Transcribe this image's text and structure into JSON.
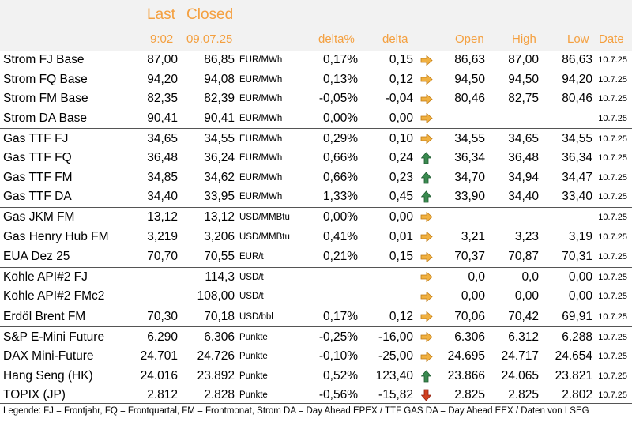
{
  "header": {
    "last": "Last",
    "closed": "Closed",
    "last_time": "9:02",
    "closed_date": "09.07.25",
    "delta_pct": "delta%",
    "delta": "delta",
    "open": "Open",
    "high": "High",
    "low": "Low",
    "date": "Date"
  },
  "colors": {
    "header_text": "#f4a040",
    "header_bg": "#f2f2f2",
    "arrow_right": "#f0b040",
    "arrow_up": "#3a8a50",
    "arrow_down": "#d04020"
  },
  "rows": [
    {
      "name": "Strom FJ Base",
      "last": "87,00",
      "closed": "86,85",
      "unit": "EUR/MWh",
      "dpct": "0,17%",
      "delta": "0,15",
      "arrow": "right",
      "open": "86,63",
      "high": "87,00",
      "low": "86,63",
      "date": "10.7.25"
    },
    {
      "name": "Strom FQ Base",
      "last": "94,20",
      "closed": "94,08",
      "unit": "EUR/MWh",
      "dpct": "0,13%",
      "delta": "0,12",
      "arrow": "right",
      "open": "94,50",
      "high": "94,50",
      "low": "94,20",
      "date": "10.7.25"
    },
    {
      "name": "Strom FM Base",
      "last": "82,35",
      "closed": "82,39",
      "unit": "EUR/MWh",
      "dpct": "-0,05%",
      "delta": "-0,04",
      "arrow": "right",
      "open": "80,46",
      "high": "82,75",
      "low": "80,46",
      "date": "10.7.25"
    },
    {
      "name": "Strom DA Base",
      "last": "90,41",
      "closed": "90,41",
      "unit": "EUR/MWh",
      "dpct": "0,00%",
      "delta": "0,00",
      "arrow": "right",
      "open": "",
      "high": "",
      "low": "",
      "date": "10.7.25"
    },
    {
      "name": "Gas TTF FJ",
      "last": "34,65",
      "closed": "34,55",
      "unit": "EUR/MWh",
      "dpct": "0,29%",
      "delta": "0,10",
      "arrow": "right",
      "open": "34,55",
      "high": "34,65",
      "low": "34,55",
      "date": "10.7.25",
      "sep": true
    },
    {
      "name": "Gas TTF FQ",
      "last": "36,48",
      "closed": "36,24",
      "unit": "EUR/MWh",
      "dpct": "0,66%",
      "delta": "0,24",
      "arrow": "up",
      "open": "36,34",
      "high": "36,48",
      "low": "36,34",
      "date": "10.7.25"
    },
    {
      "name": "Gas TTF FM",
      "last": "34,85",
      "closed": "34,62",
      "unit": "EUR/MWh",
      "dpct": "0,66%",
      "delta": "0,23",
      "arrow": "up",
      "open": "34,70",
      "high": "34,94",
      "low": "34,47",
      "date": "10.7.25"
    },
    {
      "name": "Gas TTF DA",
      "last": "34,40",
      "closed": "33,95",
      "unit": "EUR/MWh",
      "dpct": "1,33%",
      "delta": "0,45",
      "arrow": "up",
      "open": "33,90",
      "high": "34,40",
      "low": "33,40",
      "date": "10.7.25"
    },
    {
      "name": "Gas JKM FM",
      "last": "13,12",
      "closed": "13,12",
      "unit": "USD/MMBtu",
      "dpct": "0,00%",
      "delta": "0,00",
      "arrow": "right",
      "open": "",
      "high": "",
      "low": "",
      "date": "10.7.25",
      "sep": true
    },
    {
      "name": "Gas Henry Hub FM",
      "last": "3,219",
      "closed": "3,206",
      "unit": "USD/MMBtu",
      "dpct": "0,41%",
      "delta": "0,01",
      "arrow": "right",
      "open": "3,21",
      "high": "3,23",
      "low": "3,19",
      "date": "10.7.25"
    },
    {
      "name": "EUA Dez 25",
      "last": "70,70",
      "closed": "70,55",
      "unit": "EUR/t",
      "dpct": "0,21%",
      "delta": "0,15",
      "arrow": "right",
      "open": "70,37",
      "high": "70,87",
      "low": "70,31",
      "date": "10.7.25",
      "sep": true
    },
    {
      "name": "Kohle API#2 FJ",
      "last": "",
      "closed": "114,3",
      "unit": "USD/t",
      "dpct": "",
      "delta": "",
      "arrow": "right",
      "open": "0,0",
      "high": "0,0",
      "low": "0,00",
      "date": "10.7.25",
      "sep": true
    },
    {
      "name": "Kohle API#2 FMc2",
      "last": "",
      "closed": "108,00",
      "unit": "USD/t",
      "dpct": "",
      "delta": "",
      "arrow": "right",
      "open": "0,00",
      "high": "0,00",
      "low": "0,00",
      "date": "10.7.25"
    },
    {
      "name": "Erdöl Brent FM",
      "last": "70,30",
      "closed": "70,18",
      "unit": "USD/bbl",
      "dpct": "0,17%",
      "delta": "0,12",
      "arrow": "right",
      "open": "70,06",
      "high": "70,42",
      "low": "69,91",
      "date": "10.7.25",
      "sep": true
    },
    {
      "name": "S&P E-Mini Future",
      "last": "6.290",
      "closed": "6.306",
      "unit": "Punkte",
      "dpct": "-0,25%",
      "delta": "-16,00",
      "arrow": "right",
      "open": "6.306",
      "high": "6.312",
      "low": "6.288",
      "date": "10.7.25",
      "sep": true
    },
    {
      "name": "DAX Mini-Future",
      "last": "24.701",
      "closed": "24.726",
      "unit": "Punkte",
      "dpct": "-0,10%",
      "delta": "-25,00",
      "arrow": "right",
      "open": "24.695",
      "high": "24.717",
      "low": "24.654",
      "date": "10.7.25"
    },
    {
      "name": "Hang Seng (HK)",
      "last": "24.016",
      "closed": "23.892",
      "unit": "Punkte",
      "dpct": "0,52%",
      "delta": "123,40",
      "arrow": "up",
      "open": "23.866",
      "high": "24.065",
      "low": "23.821",
      "date": "10.7.25"
    },
    {
      "name": "TOPIX (JP)",
      "last": "2.812",
      "closed": "2.828",
      "unit": "Punkte",
      "dpct": "-0,56%",
      "delta": "-15,82",
      "arrow": "down",
      "open": "2.825",
      "high": "2.825",
      "low": "2.802",
      "date": "10.7.25"
    }
  ],
  "legend": "Legende: FJ = Frontjahr, FQ = Frontquartal, FM = Frontmonat, Strom DA = Day Ahead EPEX / TTF GAS DA = Day Ahead EEX / Daten von LSEG"
}
